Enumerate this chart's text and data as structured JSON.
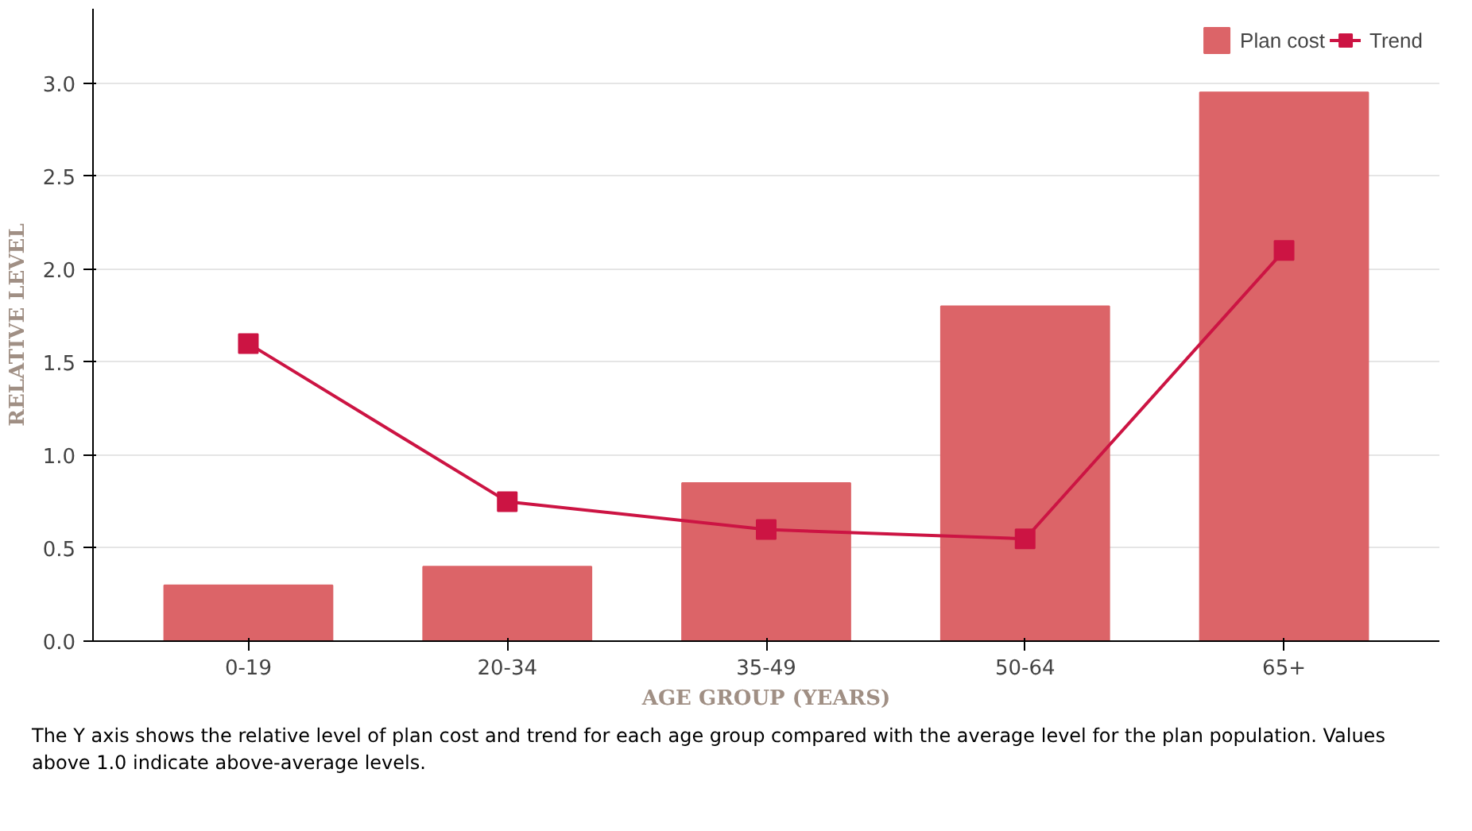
{
  "chart_data": {
    "type": "bar",
    "categories": [
      "0-19",
      "20-34",
      "35-49",
      "50-64",
      "65+"
    ],
    "xlabel": "AGE GROUP (YEARS)",
    "ylabel": "RELATIVE LEVEL",
    "series": [
      {
        "name": "Plan cost",
        "color": "#dc6468",
        "values": [
          0.3,
          0.4,
          0.85,
          1.8,
          2.95
        ]
      },
      {
        "name": "Trend",
        "type": "line",
        "color": "#cc1443",
        "marker": "square",
        "values": [
          1.6,
          0.75,
          0.6,
          0.55,
          2.1
        ]
      }
    ],
    "ylim": [
      0,
      3.4
    ],
    "yticks": [
      {
        "value": 0,
        "label": "0.0"
      },
      {
        "value": 0.5,
        "label": "0.5"
      },
      {
        "value": 1,
        "label": "1.0"
      },
      {
        "value": 1.5,
        "label": "1.5"
      },
      {
        "value": 2,
        "label": "2.0"
      },
      {
        "value": 2.5,
        "label": "2.5"
      },
      {
        "value": 3,
        "label": "3.0"
      }
    ],
    "grid": "y",
    "legend": "top right",
    "annotations": [
      "The Y axis shows the relative level of plan cost and trend for each age group compared with the average level for the plan population. Values above 1.0 indicate above-average levels."
    ]
  }
}
